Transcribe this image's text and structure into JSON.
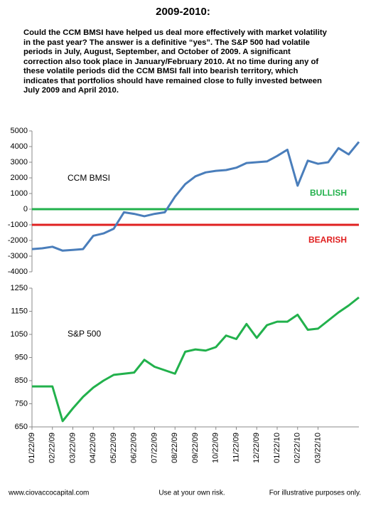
{
  "header": {
    "title": "2009-2010:",
    "paragraph": [
      "Could the CCM BMSI have helped us deal more effectively with market volatility",
      "in the past year?  The answer is a definitive “yes”.  The S&P 500 had volatile",
      "periods in July, August, September, and October of 2009.  A significant",
      "correction also took place in January/February 2010.  At no time during any of",
      "these volatile periods did the CCM BMSI fall into bearish territory, which",
      "indicates that portfolios should have remained close to fully invested between",
      "July 2009 and April 2010."
    ]
  },
  "chart_data": [
    {
      "type": "line",
      "series": [
        {
          "name": "CCM BMSI",
          "color": "#4a7ebb",
          "values": [
            -2550,
            -2500,
            -2400,
            -2650,
            -2600,
            -2550,
            -1700,
            -1550,
            -1250,
            -200,
            -300,
            -450,
            -300,
            -200,
            800,
            1600,
            2100,
            2350,
            2450,
            2500,
            2650,
            2950,
            3000,
            3050,
            3400,
            3800,
            1500,
            3100,
            2900,
            3000,
            3900,
            3500,
            4300
          ]
        }
      ],
      "ylim": [
        -4000,
        5000
      ],
      "yticks": [
        -4000,
        -3000,
        -2000,
        -1000,
        0,
        1000,
        2000,
        3000,
        4000,
        5000
      ],
      "reference_lines": [
        {
          "value": 0,
          "label": "BULLISH",
          "color": "#22b14c"
        },
        {
          "value": -1000,
          "label": "BEARISH",
          "color": "#e02020"
        }
      ]
    },
    {
      "type": "line",
      "series": [
        {
          "name": "S&P 500",
          "color": "#22b14c",
          "values": [
            825,
            825,
            825,
            675,
            730,
            780,
            820,
            850,
            875,
            880,
            885,
            940,
            910,
            895,
            880,
            975,
            985,
            980,
            995,
            1045,
            1030,
            1095,
            1035,
            1090,
            1105,
            1105,
            1135,
            1070,
            1075,
            1110,
            1145,
            1175,
            1210
          ]
        }
      ],
      "categories": [
        "01/22/09",
        null,
        "02/22/09",
        null,
        "03/22/09",
        null,
        "04/22/09",
        null,
        "05/22/09",
        null,
        "06/22/09",
        null,
        "07/22/09",
        null,
        "08/22/09",
        null,
        "09/22/09",
        null,
        "10/22/09",
        null,
        "11/22/09",
        null,
        "12/22/09",
        null,
        "01/22/10",
        null,
        "02/22/10",
        null,
        "03/22/10",
        null,
        null,
        null,
        null
      ],
      "ylim": [
        650,
        1250
      ],
      "yticks": [
        650,
        750,
        850,
        950,
        1050,
        1150,
        1250
      ]
    }
  ],
  "footer": {
    "left": "www.ciovaccocapital.com",
    "center": "Use at your own risk.",
    "right": "For illustrative purposes only."
  }
}
